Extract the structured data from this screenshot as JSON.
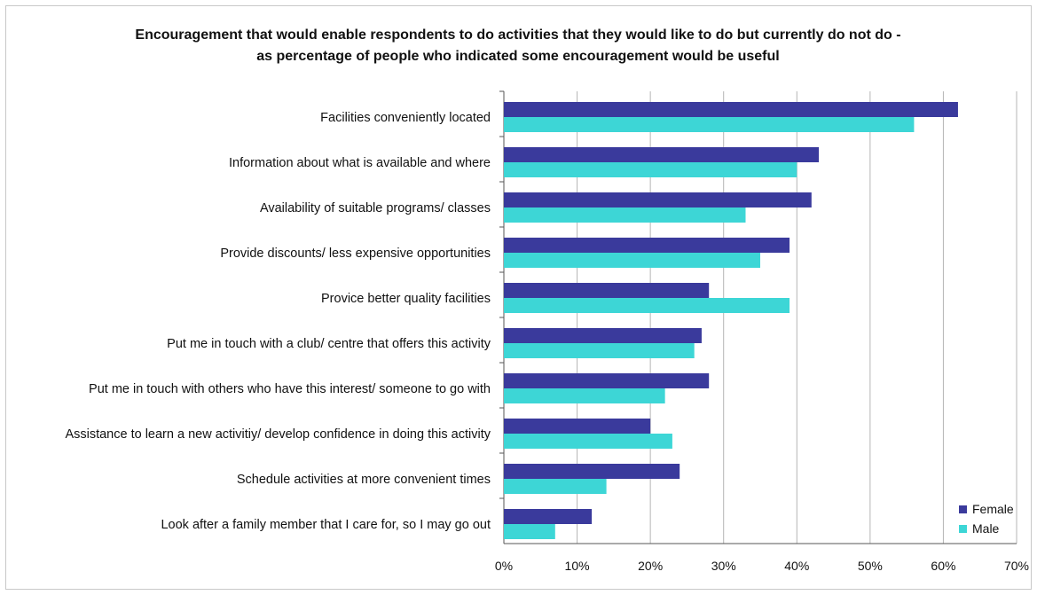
{
  "chart_data": {
    "type": "bar",
    "orientation": "horizontal",
    "title": [
      "Encouragement that would enable respondents to do activities that they would like to do but currently do not do -",
      "as percentage of people who indicated some encouragement would be useful"
    ],
    "categories": [
      "Facilities conveniently located",
      "Information about what is available and where",
      "Availability of suitable programs/ classes",
      "Provide discounts/ less expensive opportunities",
      "Provice better quality facilities",
      "Put me in touch with a club/ centre that offers this activity",
      "Put me in touch with others who have this interest/ someone to go with",
      "Assistance to learn a new activitiy/ develop confidence in doing this activity",
      "Schedule activities at more convenient times",
      "Look after a family member that I care for, so I may go out"
    ],
    "series": [
      {
        "name": "Female",
        "color": "#3a3a9c",
        "values": [
          62,
          43,
          42,
          39,
          28,
          27,
          28,
          20,
          24,
          12
        ]
      },
      {
        "name": "Male",
        "color": "#3dd6d6",
        "values": [
          56,
          40,
          33,
          35,
          39,
          26,
          22,
          23,
          14,
          7
        ]
      }
    ],
    "xlim": [
      0,
      70
    ],
    "xticks": [
      0,
      10,
      20,
      30,
      40,
      50,
      60,
      70
    ],
    "xtick_format": "%",
    "xlabel": "",
    "ylabel": "",
    "grid": true,
    "legend_position": "bottom-right"
  }
}
